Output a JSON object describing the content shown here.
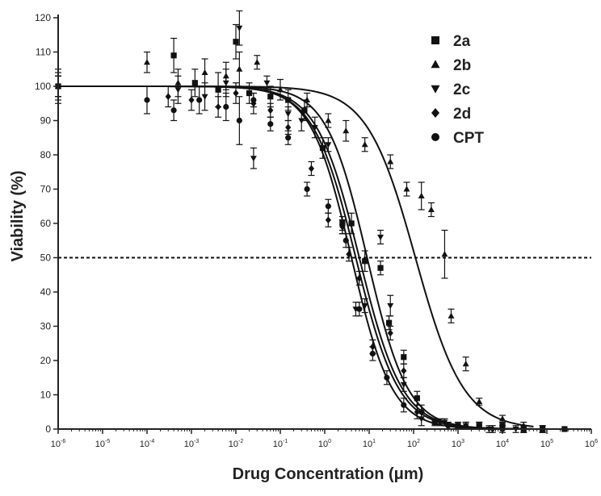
{
  "chart_data": {
    "type": "scatter",
    "xlabel": "Drug Concentration (μm)",
    "ylabel": "Viability (%)",
    "x_scale": "log",
    "xlim": [
      1e-06,
      1000000.0
    ],
    "ylim": [
      0,
      120
    ],
    "x_ticks": [
      {
        "value": 1e-06,
        "base": "10",
        "exp": "-6"
      },
      {
        "value": 1e-05,
        "base": "10",
        "exp": "-5"
      },
      {
        "value": 0.0001,
        "base": "10",
        "exp": "-4"
      },
      {
        "value": 0.001,
        "base": "10",
        "exp": "-3"
      },
      {
        "value": 0.01,
        "base": "10",
        "exp": "-2"
      },
      {
        "value": 0.1,
        "base": "10",
        "exp": "-1"
      },
      {
        "value": 1.0,
        "base": "10",
        "exp": "0"
      },
      {
        "value": 10.0,
        "base": "10",
        "exp": "1"
      },
      {
        "value": 100.0,
        "base": "10",
        "exp": "2"
      },
      {
        "value": 1000.0,
        "base": "10",
        "exp": "3"
      },
      {
        "value": 10000.0,
        "base": "10",
        "exp": "4"
      },
      {
        "value": 100000.0,
        "base": "10",
        "exp": "5"
      },
      {
        "value": 1000000.0,
        "base": "10",
        "exp": "6"
      }
    ],
    "y_ticks": [
      "0",
      "10",
      "20",
      "30",
      "40",
      "50",
      "60",
      "70",
      "80",
      "90",
      "100",
      "110",
      "120"
    ],
    "reference_line": {
      "y": 50,
      "style": "dashed"
    },
    "grid": false,
    "legend_position": "top-right",
    "series": [
      {
        "name": "2a",
        "marker": "square",
        "ic50": 6,
        "hill": 0.9,
        "points": [
          [
            1e-06,
            100,
            4
          ],
          [
            0.0004,
            109,
            5
          ],
          [
            0.0012,
            101,
            4
          ],
          [
            0.004,
            99,
            5
          ],
          [
            0.01,
            113,
            5
          ],
          [
            0.02,
            98,
            3
          ],
          [
            0.06,
            97,
            3
          ],
          [
            0.15,
            96,
            3
          ],
          [
            0.35,
            93,
            3
          ],
          [
            0.9,
            82,
            3
          ],
          [
            2.5,
            60,
            2
          ],
          [
            4,
            60,
            3
          ],
          [
            8,
            49,
            3
          ],
          [
            18,
            47,
            2
          ],
          [
            28,
            31,
            2
          ],
          [
            60,
            21,
            2
          ],
          [
            120,
            9,
            2
          ],
          [
            300,
            2,
            1
          ],
          [
            1000,
            1,
            1
          ],
          [
            3000,
            1,
            1
          ],
          [
            10000,
            1,
            1
          ],
          [
            30000,
            0,
            1
          ],
          [
            80000,
            0,
            1
          ],
          [
            250000,
            0,
            0
          ]
        ]
      },
      {
        "name": "2b",
        "marker": "triangle-up",
        "ic50": 110,
        "hill": 0.8,
        "points": [
          [
            1e-06,
            100,
            5
          ],
          [
            0.0001,
            107,
            3
          ],
          [
            0.0005,
            101,
            4
          ],
          [
            0.002,
            104,
            4
          ],
          [
            0.006,
            103,
            4
          ],
          [
            0.012,
            105,
            5
          ],
          [
            0.03,
            107,
            2
          ],
          [
            0.1,
            99,
            3
          ],
          [
            0.4,
            96,
            2
          ],
          [
            1.2,
            90,
            2
          ],
          [
            3,
            87,
            3
          ],
          [
            8,
            83,
            2
          ],
          [
            30,
            78,
            2
          ],
          [
            70,
            70,
            2
          ],
          [
            150,
            68,
            4
          ],
          [
            250,
            64,
            2
          ],
          [
            500,
            51,
            7
          ],
          [
            700,
            33,
            2
          ],
          [
            1500,
            19,
            2
          ],
          [
            3000,
            8,
            1
          ],
          [
            10000,
            3,
            1
          ],
          [
            30000,
            1,
            1
          ],
          [
            80000,
            0,
            1
          ]
        ]
      },
      {
        "name": "2c",
        "marker": "triangle-down",
        "ic50": 9,
        "hill": 0.95,
        "points": [
          [
            1e-06,
            100,
            3
          ],
          [
            0.0005,
            99,
            4
          ],
          [
            0.002,
            97,
            4
          ],
          [
            0.006,
            101,
            4
          ],
          [
            0.012,
            117,
            5
          ],
          [
            0.025,
            79,
            3
          ],
          [
            0.05,
            101,
            2
          ],
          [
            0.15,
            92,
            2
          ],
          [
            0.3,
            90,
            3
          ],
          [
            0.6,
            88,
            3
          ],
          [
            1.2,
            83,
            2
          ],
          [
            2.5,
            59,
            2
          ],
          [
            5,
            35,
            2
          ],
          [
            8,
            36,
            2
          ],
          [
            18,
            56,
            2
          ],
          [
            30,
            36,
            3
          ],
          [
            60,
            13,
            2
          ],
          [
            150,
            3,
            2
          ],
          [
            500,
            2,
            1
          ],
          [
            1500,
            1,
            1
          ],
          [
            5000,
            0,
            1
          ],
          [
            20000,
            0,
            1
          ]
        ]
      },
      {
        "name": "2d",
        "marker": "diamond",
        "ic50": 5,
        "hill": 0.9,
        "points": [
          [
            1e-06,
            100,
            3
          ],
          [
            0.0003,
            97,
            3
          ],
          [
            0.001,
            96,
            3
          ],
          [
            0.004,
            94,
            3
          ],
          [
            0.01,
            98,
            3
          ],
          [
            0.025,
            95,
            3
          ],
          [
            0.06,
            93,
            2
          ],
          [
            0.15,
            88,
            2
          ],
          [
            0.5,
            76,
            2
          ],
          [
            1.2,
            61,
            2
          ],
          [
            2.5,
            59,
            2
          ],
          [
            3.5,
            51,
            2
          ],
          [
            6,
            44,
            2
          ],
          [
            12,
            24,
            2
          ],
          [
            30,
            28,
            2
          ],
          [
            60,
            17,
            2
          ],
          [
            120,
            5,
            2
          ],
          [
            400,
            2,
            1
          ],
          [
            1500,
            1,
            1
          ],
          [
            6000,
            0,
            1
          ],
          [
            30000,
            0,
            1
          ]
        ]
      },
      {
        "name": "CPT",
        "marker": "circle",
        "ic50": 4,
        "hill": 0.95,
        "points": [
          [
            1e-06,
            100,
            3
          ],
          [
            0.0001,
            96,
            4
          ],
          [
            0.0004,
            93,
            3
          ],
          [
            0.0015,
            96,
            4
          ],
          [
            0.006,
            94,
            4
          ],
          [
            0.012,
            90,
            7
          ],
          [
            0.025,
            96,
            2
          ],
          [
            0.06,
            89,
            2
          ],
          [
            0.15,
            85,
            2
          ],
          [
            0.4,
            70,
            2
          ],
          [
            1.2,
            65,
            2
          ],
          [
            3,
            55,
            2
          ],
          [
            6,
            35,
            2
          ],
          [
            12,
            22,
            2
          ],
          [
            25,
            15,
            2
          ],
          [
            60,
            7,
            2
          ],
          [
            150,
            5,
            2
          ],
          [
            600,
            1,
            1
          ],
          [
            3000,
            1,
            1
          ],
          [
            10000,
            0,
            1
          ]
        ]
      }
    ]
  }
}
